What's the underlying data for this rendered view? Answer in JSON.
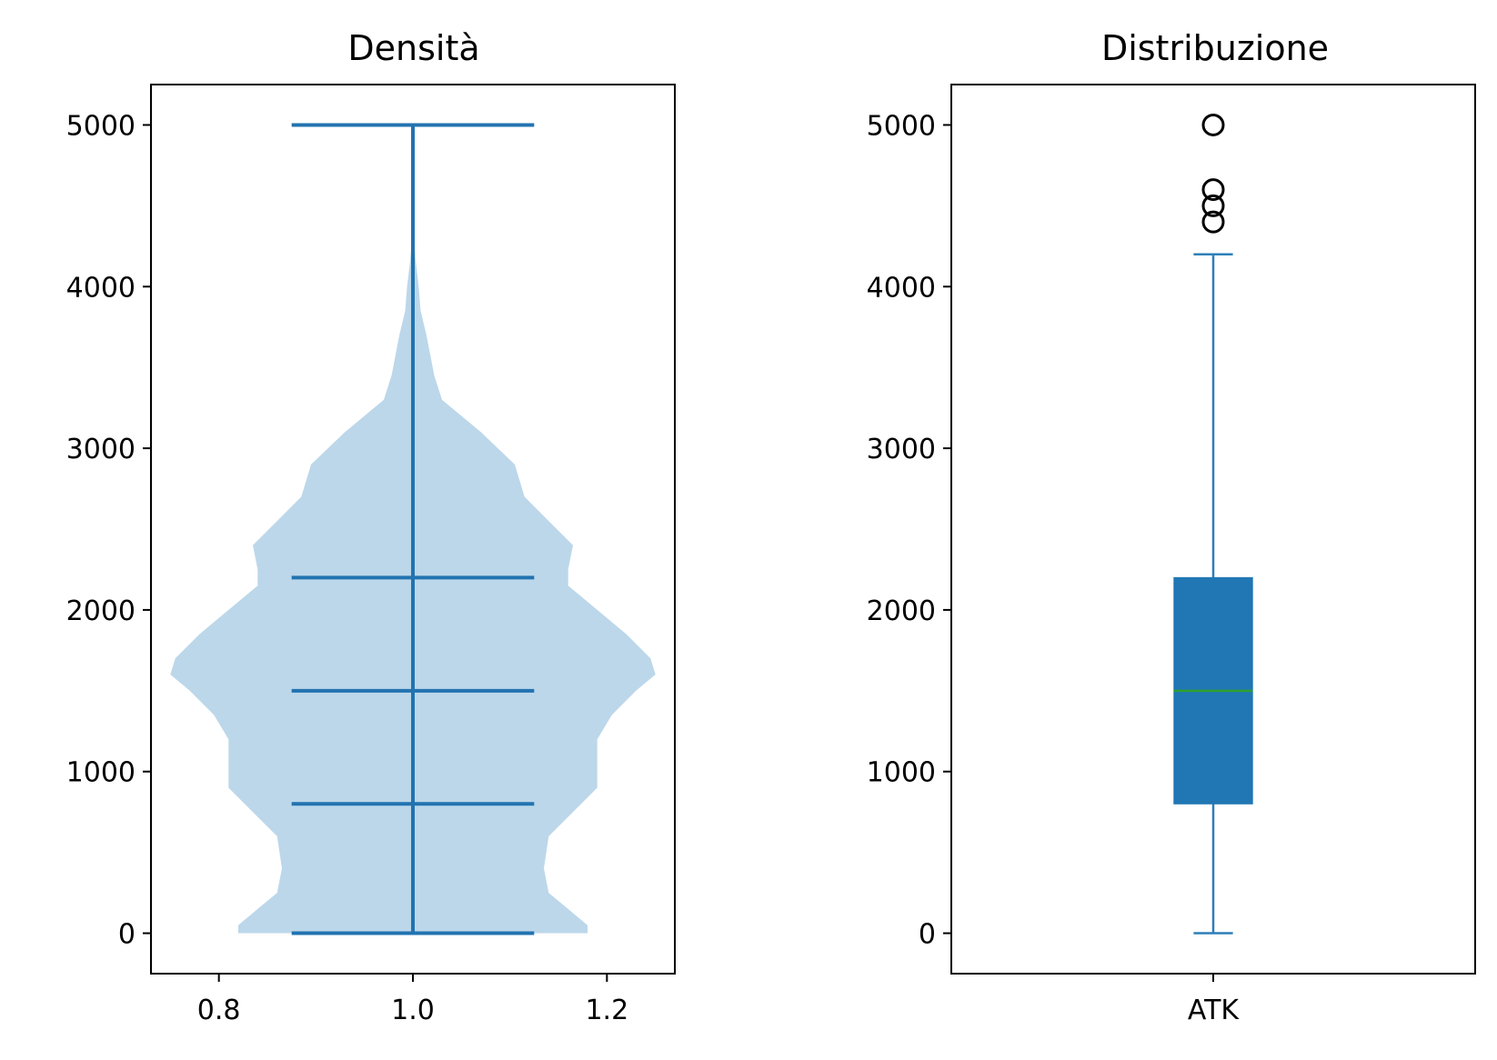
{
  "colors": {
    "violin_body": "#bcd7ea",
    "violin_lines": "#2273b0",
    "box_fill": "#2077b4",
    "whisker": "#2d7fb8",
    "median": "#2ca02c",
    "flier": "#000000",
    "axis": "#000000"
  },
  "chart_data": [
    {
      "type": "violin",
      "title": "Densità",
      "xlim": [
        0.73,
        1.27
      ],
      "ylim": [
        -250,
        5250
      ],
      "xticks": [
        0.8,
        1.0,
        1.2
      ],
      "xtick_labels": [
        "0.8",
        "1.0",
        "1.2"
      ],
      "yticks": [
        0,
        1000,
        2000,
        3000,
        4000,
        5000
      ],
      "ytick_labels": [
        "0",
        "1000",
        "2000",
        "3000",
        "4000",
        "5000"
      ],
      "position": 1.0,
      "min": 0,
      "q1": 800,
      "median": 1500,
      "q3": 2200,
      "max": 5000,
      "density_profile": [
        [
          0,
          0.18
        ],
        [
          50,
          0.18
        ],
        [
          150,
          0.16
        ],
        [
          250,
          0.14
        ],
        [
          400,
          0.135
        ],
        [
          600,
          0.14
        ],
        [
          750,
          0.165
        ],
        [
          900,
          0.19
        ],
        [
          1050,
          0.19
        ],
        [
          1200,
          0.19
        ],
        [
          1350,
          0.205
        ],
        [
          1500,
          0.23
        ],
        [
          1600,
          0.25
        ],
        [
          1700,
          0.245
        ],
        [
          1850,
          0.22
        ],
        [
          2000,
          0.19
        ],
        [
          2150,
          0.16
        ],
        [
          2250,
          0.16
        ],
        [
          2400,
          0.165
        ],
        [
          2550,
          0.14
        ],
        [
          2700,
          0.115
        ],
        [
          2900,
          0.105
        ],
        [
          3100,
          0.07
        ],
        [
          3300,
          0.03
        ],
        [
          3450,
          0.022
        ],
        [
          3700,
          0.014
        ],
        [
          3850,
          0.008
        ],
        [
          4000,
          0.006
        ],
        [
          4150,
          0.003
        ],
        [
          4300,
          0.001
        ],
        [
          4400,
          0.0
        ]
      ]
    },
    {
      "type": "box",
      "title": "Distribuzione",
      "xlim": [
        0.5,
        1.5
      ],
      "ylim": [
        -250,
        5250
      ],
      "xticks": [
        1
      ],
      "xtick_labels": [
        "ATK"
      ],
      "yticks": [
        0,
        1000,
        2000,
        3000,
        4000,
        5000
      ],
      "ytick_labels": [
        "0",
        "1000",
        "2000",
        "3000",
        "4000",
        "5000"
      ],
      "position": 1,
      "whisker_low": 0,
      "q1": 800,
      "median": 1500,
      "q3": 2200,
      "whisker_high": 4200,
      "outliers": [
        4400,
        4500,
        4600,
        5000
      ]
    }
  ]
}
